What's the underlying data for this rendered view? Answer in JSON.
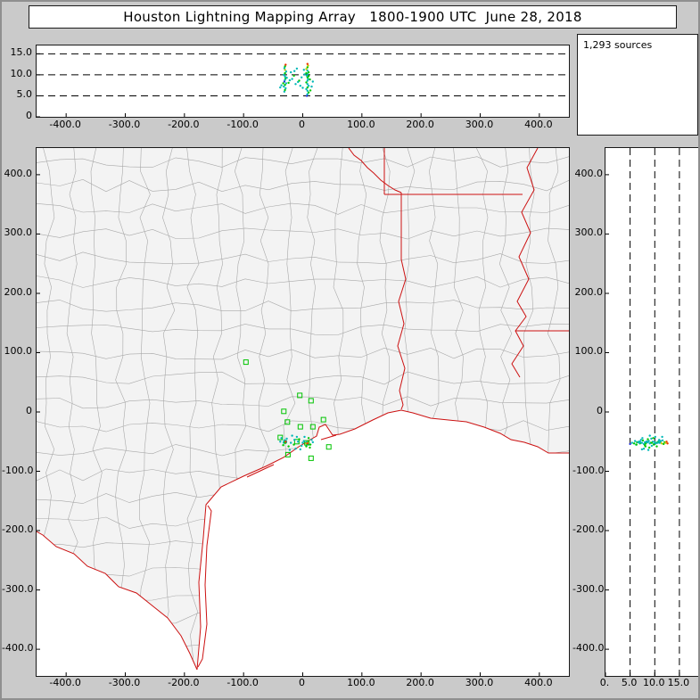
{
  "window": {
    "title": "Houston Lightning Mapping Array   1800-1900 UTC  June 28, 2018"
  },
  "stats": {
    "sources_label": "1,293 sources"
  },
  "colors": {
    "frame_bg": "#cacaca",
    "panel_bg": "#ffffff",
    "panel_border": "#1a1a1a",
    "land_fill": "#f3f3f3",
    "county_line": "#a8a8a8",
    "state_line": "#cc1111",
    "station_color": "#00c400",
    "dash_color": "#000000",
    "tick_color": "#000000"
  },
  "chart_data": {
    "type": "scatter",
    "title": "Houston Lightning Mapping Array 1800-1900 UTC June 28, 2018",
    "source_count": 1293,
    "legend_position": "top-right",
    "grid": "dashed-altitude-lines",
    "ew_axis": {
      "range": [
        -450,
        450
      ],
      "tick_values": [
        -400,
        -300,
        -200,
        -100,
        0,
        100,
        200,
        300,
        400
      ],
      "tick_labels": [
        "-400.0",
        "-300.0",
        "-200.0",
        "-100.0",
        "0",
        "100.0",
        "200.0",
        "300.0",
        "400.0"
      ]
    },
    "ns_axis": {
      "range": [
        -445,
        445
      ],
      "tick_values": [
        400,
        300,
        200,
        100,
        0,
        -100,
        -200,
        -300,
        -400
      ],
      "tick_labels": [
        "400.0",
        "300.0",
        "200.0",
        "100.0",
        "0",
        "-100.0",
        "-200.0",
        "-300.0",
        "-400.0"
      ]
    },
    "alt_axis": {
      "range": [
        0,
        17
      ],
      "dashed_values": [
        5,
        10,
        15
      ],
      "tick_values": [
        15,
        10,
        5,
        0
      ],
      "tick_labels": [
        "15.0",
        "10.0",
        "5.0",
        "0"
      ]
    },
    "alt_axis_right": {
      "range": [
        0,
        19
      ],
      "dashed_values": [
        5,
        10,
        15
      ],
      "tick_values": [
        0,
        5,
        10,
        15
      ],
      "tick_labels": [
        "0.",
        "5.0",
        "10.0",
        "15.0"
      ]
    },
    "point_colors": [
      "#00b8b8",
      "#00c800",
      "#2233dd",
      "#c8c800",
      "#ee3300"
    ],
    "stations": [
      [
        -96,
        84
      ],
      [
        -5,
        28
      ],
      [
        14,
        19
      ],
      [
        -32,
        1
      ],
      [
        -26,
        -17
      ],
      [
        -4,
        -25
      ],
      [
        17,
        -25
      ],
      [
        35,
        -13
      ],
      [
        -38,
        -43
      ],
      [
        -10,
        -50
      ],
      [
        7,
        -52
      ],
      [
        44,
        -59
      ],
      [
        -25,
        -72
      ],
      [
        14,
        -78
      ]
    ],
    "sources": [
      [
        -31,
        -49,
        6.0,
        0
      ],
      [
        -30,
        -51,
        6.4,
        1
      ],
      [
        -29,
        -50,
        6.8,
        0
      ],
      [
        -32,
        -52,
        7.2,
        0
      ],
      [
        -30,
        -48,
        7.6,
        1
      ],
      [
        -28,
        -51,
        8.0,
        0
      ],
      [
        -31,
        -50,
        8.4,
        2
      ],
      [
        -30,
        -49,
        8.8,
        0
      ],
      [
        -29,
        -52,
        9.2,
        1
      ],
      [
        -30,
        -50,
        9.6,
        0
      ],
      [
        -32,
        -51,
        10.0,
        0
      ],
      [
        -30,
        -52,
        10.4,
        1
      ],
      [
        -28,
        -49,
        10.8,
        0
      ],
      [
        -30,
        -50,
        11.2,
        3
      ],
      [
        -31,
        -48,
        11.6,
        0
      ],
      [
        -30,
        -51,
        12.0,
        1
      ],
      [
        -29,
        -50,
        12.4,
        4
      ],
      [
        7,
        -54,
        5.0,
        2
      ],
      [
        8,
        -52,
        5.4,
        0
      ],
      [
        10,
        -53,
        5.8,
        1
      ],
      [
        8,
        -55,
        6.2,
        0
      ],
      [
        6,
        -51,
        6.6,
        0
      ],
      [
        8,
        -53,
        7.0,
        1
      ],
      [
        10,
        -52,
        7.4,
        0
      ],
      [
        8,
        -54,
        7.8,
        0
      ],
      [
        6,
        -53,
        8.2,
        1
      ],
      [
        8,
        -51,
        8.6,
        0
      ],
      [
        9,
        -53,
        9.0,
        0
      ],
      [
        8,
        -52,
        9.4,
        1
      ],
      [
        7,
        -54,
        9.8,
        0
      ],
      [
        8,
        -53,
        10.2,
        0
      ],
      [
        10,
        -51,
        10.6,
        1
      ],
      [
        8,
        -52,
        11.0,
        0
      ],
      [
        6,
        -53,
        11.4,
        3
      ],
      [
        8,
        -54,
        11.8,
        1
      ],
      [
        9,
        -52,
        12.2,
        3
      ],
      [
        8,
        -53,
        12.6,
        4
      ],
      [
        -36,
        -44,
        7.5,
        0
      ],
      [
        -24,
        -58,
        8.1,
        1
      ],
      [
        -18,
        -40,
        9.0,
        0
      ],
      [
        -12,
        -62,
        7.8,
        0
      ],
      [
        -6,
        -46,
        8.6,
        1
      ],
      [
        -2,
        -57,
        9.4,
        0
      ],
      [
        3,
        -42,
        10.1,
        0
      ],
      [
        12,
        -60,
        8.9,
        1
      ],
      [
        15,
        -47,
        7.2,
        0
      ],
      [
        -20,
        -52,
        10.6,
        0
      ],
      [
        -15,
        -55,
        9.8,
        1
      ],
      [
        -8,
        -50,
        8.3,
        0
      ],
      [
        -27,
        -45,
        9.3,
        0
      ],
      [
        -33,
        -56,
        8.0,
        1
      ],
      [
        2,
        -49,
        11.2,
        0
      ],
      [
        -4,
        -63,
        7.4,
        0
      ],
      [
        10,
        -44,
        9.7,
        1
      ],
      [
        -14,
        -47,
        10.9,
        0
      ],
      [
        -22,
        -64,
        8.7,
        0
      ],
      [
        6,
        -58,
        10.4,
        1
      ],
      [
        -10,
        -42,
        11.5,
        0
      ],
      [
        0,
        -52,
        6.9,
        0
      ],
      [
        13,
        -55,
        6.3,
        1
      ],
      [
        -38,
        -50,
        7.0,
        0
      ],
      [
        17,
        -51,
        8.4,
        0
      ]
    ]
  }
}
